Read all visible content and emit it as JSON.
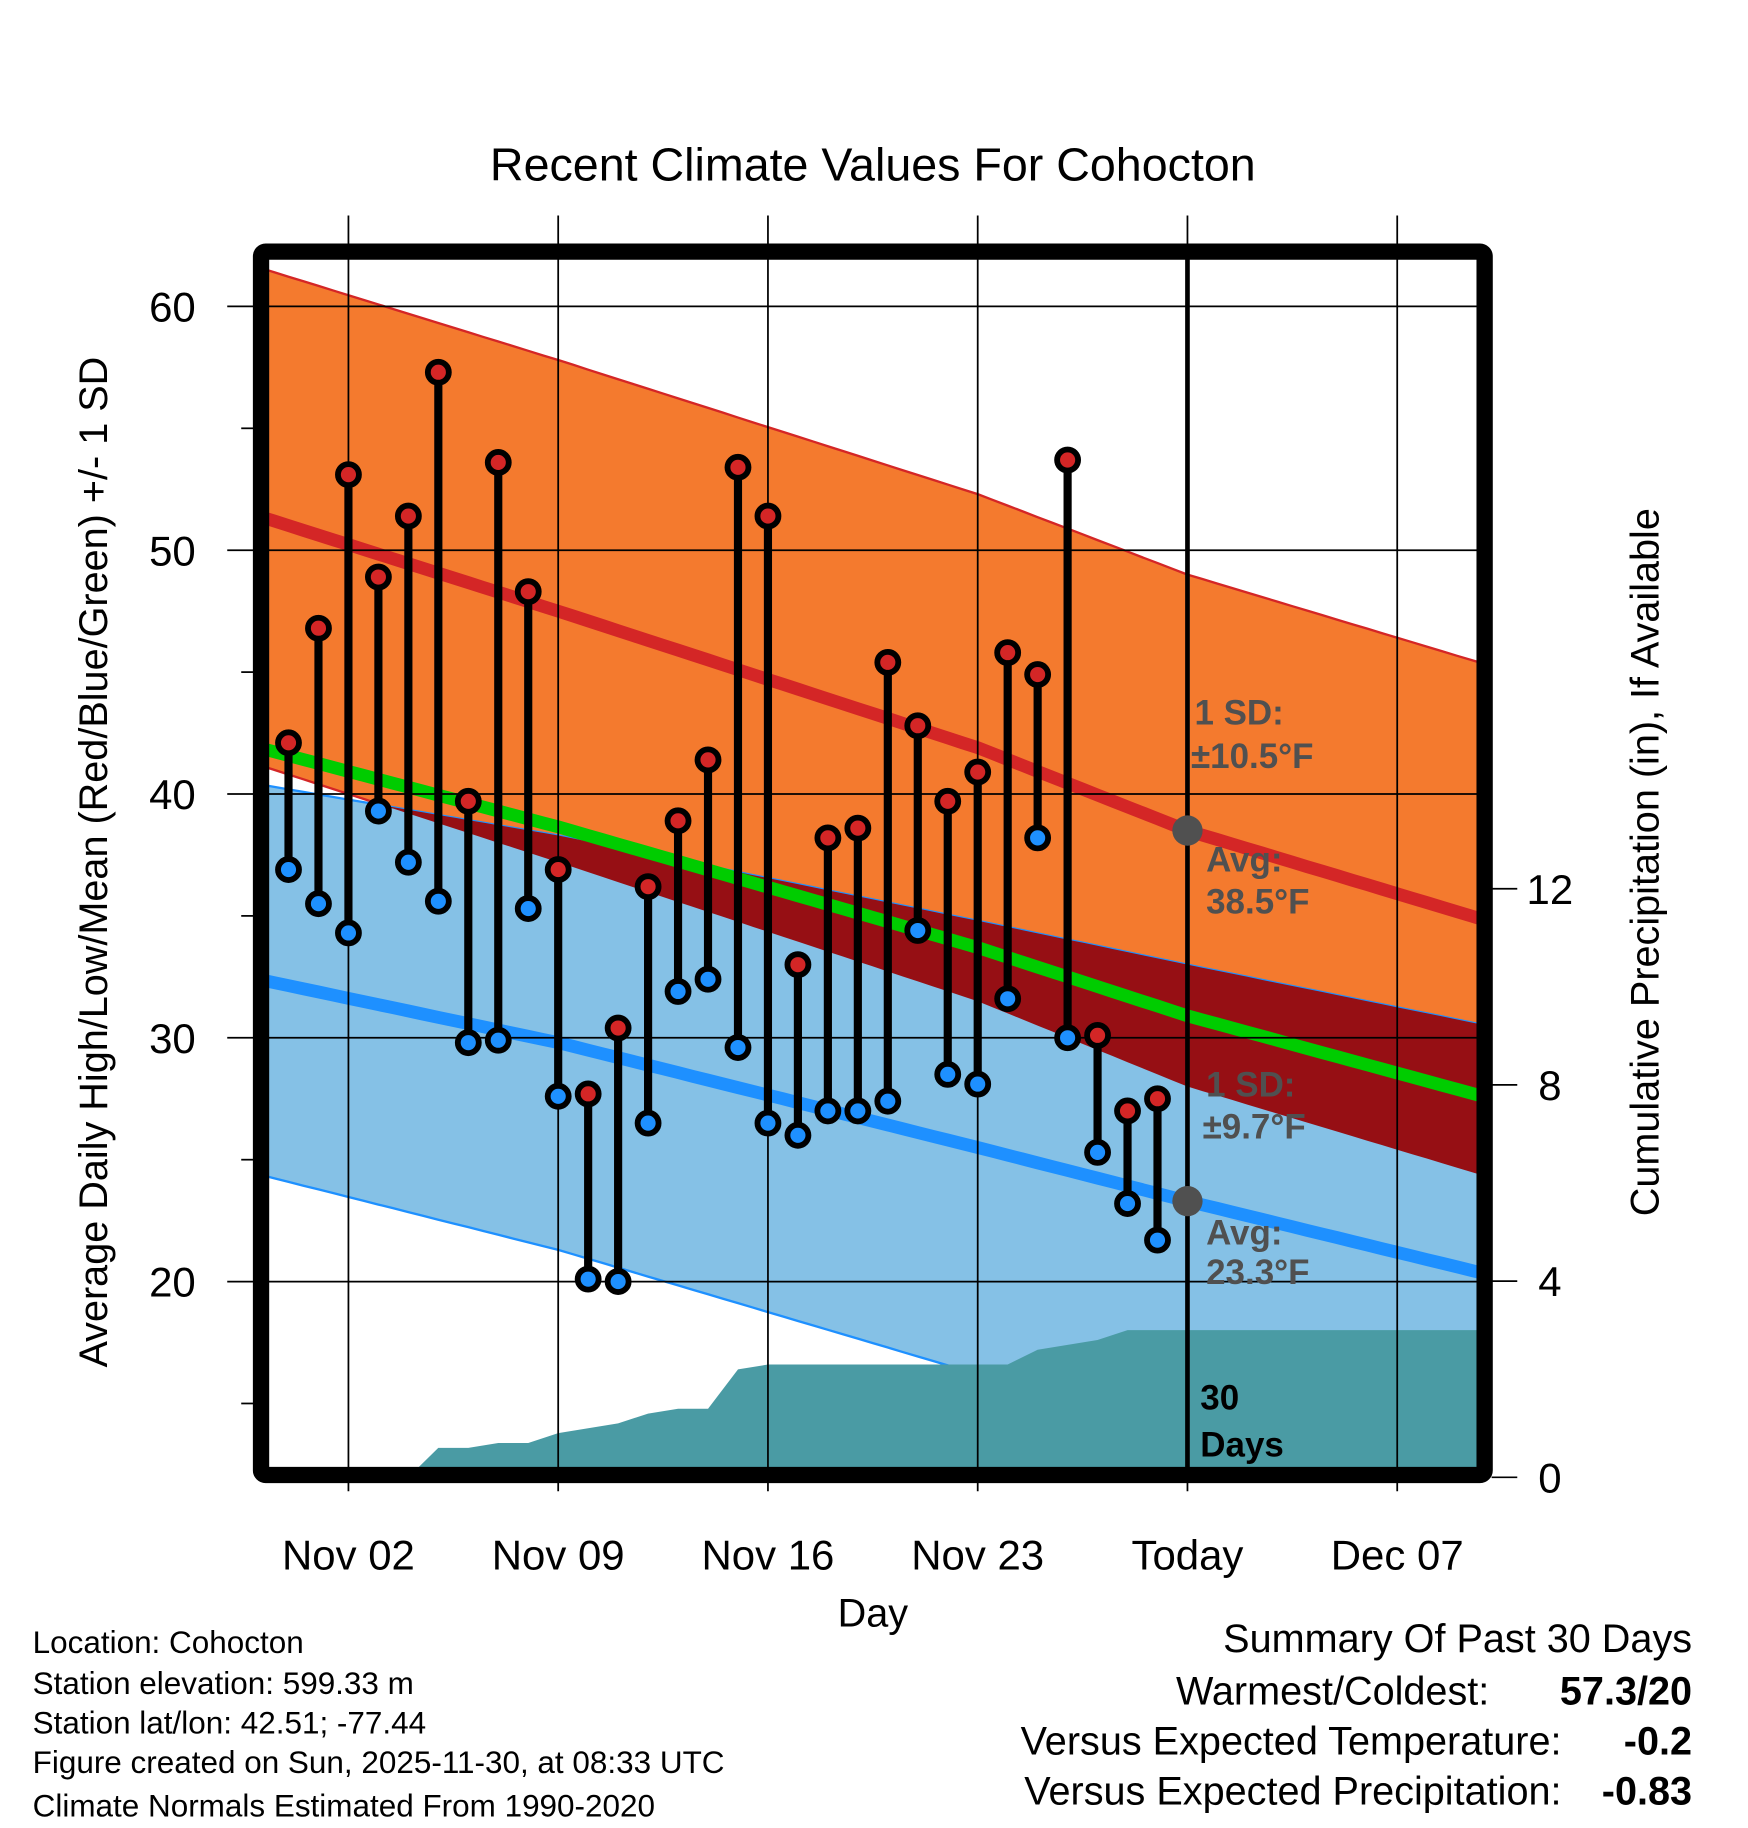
{
  "chart_data": {
    "type": "line",
    "title": "Recent Climate Values For Cohocton",
    "xlabel": "Day",
    "ylabel": "Average Daily High/Low/Mean (Red/Blue/Green) +/- 1 SD",
    "y2label": "Cumulative Precipitation (in), If Available",
    "ylim": [
      12.35,
      61.96
    ],
    "y2lim": [
      0,
      23.5
    ],
    "x_tick_labels": [
      "Nov 02",
      "Nov 09",
      "Nov 16",
      "Nov 23",
      "Today",
      "Dec 07"
    ],
    "x_tick_days": [
      0,
      7,
      14,
      21,
      28,
      35
    ],
    "y_ticks": [
      20,
      30,
      40,
      50,
      60
    ],
    "y_tick_labels": [
      "20",
      "30",
      "40",
      "50",
      "60"
    ],
    "y2_ticks": [
      0,
      4,
      8,
      12
    ],
    "y2_tick_labels": [
      "0",
      "4",
      "8",
      "12"
    ],
    "grid": true,
    "dates": [
      "Oct 31",
      "Nov 01",
      "Nov 02",
      "Nov 03",
      "Nov 04",
      "Nov 05",
      "Nov 06",
      "Nov 07",
      "Nov 08",
      "Nov 09",
      "Nov 10",
      "Nov 11",
      "Nov 12",
      "Nov 13",
      "Nov 14",
      "Nov 15",
      "Nov 16",
      "Nov 17",
      "Nov 18",
      "Nov 19",
      "Nov 20",
      "Nov 21",
      "Nov 22",
      "Nov 23",
      "Nov 24",
      "Nov 25",
      "Nov 26",
      "Nov 27",
      "Nov 28",
      "Nov 29"
    ],
    "date_days": [
      -2,
      -1,
      0,
      1,
      2,
      3,
      4,
      5,
      6,
      7,
      8,
      9,
      10,
      11,
      12,
      13,
      14,
      15,
      16,
      17,
      18,
      19,
      20,
      21,
      22,
      23,
      24,
      25,
      26,
      27
    ],
    "series": [
      {
        "name": "Daily High",
        "color": "#D42626",
        "values": [
          42.1,
          46.8,
          53.1,
          48.9,
          51.4,
          57.3,
          39.7,
          53.6,
          48.3,
          36.9,
          27.7,
          30.4,
          36.2,
          38.9,
          41.4,
          53.4,
          51.4,
          33.0,
          38.2,
          38.6,
          45.4,
          42.8,
          39.7,
          40.9,
          45.8,
          44.9,
          53.7,
          30.1,
          27.0,
          27.5
        ]
      },
      {
        "name": "Daily Low",
        "color": "#1E90FF",
        "values": [
          36.9,
          35.5,
          34.3,
          39.3,
          37.2,
          35.6,
          29.8,
          29.9,
          35.3,
          27.6,
          20.1,
          20.0,
          26.5,
          31.9,
          32.4,
          29.6,
          26.5,
          26.0,
          27.0,
          27.0,
          27.4,
          34.4,
          28.5,
          28.1,
          31.6,
          38.2,
          30.0,
          25.3,
          23.2,
          21.7
        ]
      },
      {
        "name": "Cumulative Precipitation (in)",
        "color": "#4A9BA4",
        "values": [
          0,
          0,
          0,
          0,
          0,
          0.6,
          0.6,
          0.7,
          0.7,
          0.9,
          1.0,
          1.1,
          1.3,
          1.4,
          1.4,
          2.2,
          2.3,
          2.3,
          2.3,
          2.3,
          2.3,
          2.3,
          2.3,
          2.3,
          2.3,
          2.6,
          2.7,
          2.8,
          3.0,
          3.0
        ]
      }
    ],
    "normals": {
      "days": [
        -3,
        7,
        21,
        28,
        38
      ],
      "avg_high": [
        51.4,
        47.5,
        41.9,
        38.5,
        34.8
      ],
      "high_sd": [
        10.2,
        10.3,
        10.4,
        10.5,
        10.5
      ],
      "avg_low": [
        32.4,
        29.8,
        25.5,
        23.3,
        20.3
      ],
      "low_sd": [
        8.0,
        8.5,
        9.3,
        9.7,
        10.2
      ],
      "colors": {
        "high_band": "#F47A2E",
        "high_line": "#D42626",
        "low_band": "#85C1E6",
        "low_line": "#1E90FF",
        "overlap": "#960F14",
        "mean_line": "#00CC00",
        "precip": "#4A9BA4"
      }
    },
    "annotations": {
      "high_sd_label": "1 SD:",
      "high_sd_value": "±10.5°F",
      "high_avg_label": "Avg:",
      "high_avg_value": "38.5°F",
      "low_sd_label": "1 SD:",
      "low_sd_value": "±9.7°F",
      "low_avg_label": "Avg:",
      "low_avg_value": "23.3°F",
      "period_line1": "30",
      "period_line2": "Days",
      "today_high_avg": 38.5,
      "today_low_avg": 23.3
    }
  },
  "info": {
    "location": "Location: Cohocton",
    "elevation": "Station elevation: 599.33 m",
    "latlon": "Station lat/lon: 42.51; -77.44",
    "created": "Figure created on Sun, 2025-11-30, at 08:33 UTC",
    "normals": "Climate Normals Estimated From 1990-2020"
  },
  "summary": {
    "title": "Summary Of Past 30 Days",
    "warm_cold_label": "Warmest/Coldest:",
    "warm_cold_value": "57.3/20",
    "temp_label": "Versus Expected Temperature:",
    "temp_value": "-0.2",
    "temp_color": "#1E90FF",
    "precip_label": "Versus Expected Precipitation:",
    "precip_value": "-0.83",
    "precip_color": "#A0522D"
  }
}
